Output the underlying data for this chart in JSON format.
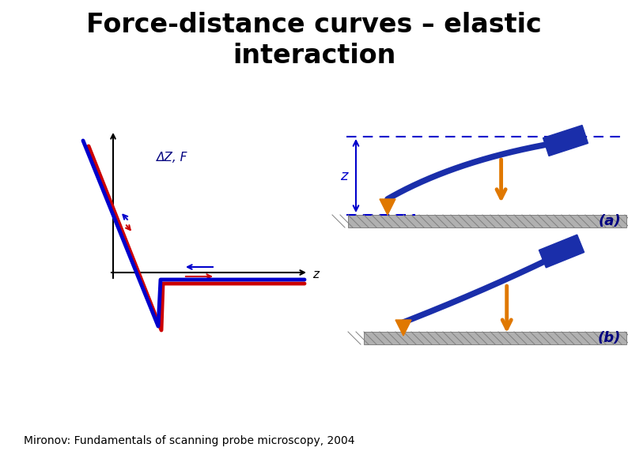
{
  "title": "Force-distance curves – elastic\ninteraction",
  "title_fontsize": 24,
  "title_color": "#000000",
  "subtitle": "Mironov: Fundamentals of scanning probe microscopy, 2004",
  "subtitle_fontsize": 10,
  "bg_color": "#ffffff",
  "graph_label": "ΔZ, F",
  "graph_label_color": "#000080",
  "z_label": "z",
  "blue_color": "#0000CC",
  "red_color": "#CC0000",
  "orange_color": "#E07800",
  "dark_blue": "#000080",
  "cantilever_blue": "#1a2eaa"
}
